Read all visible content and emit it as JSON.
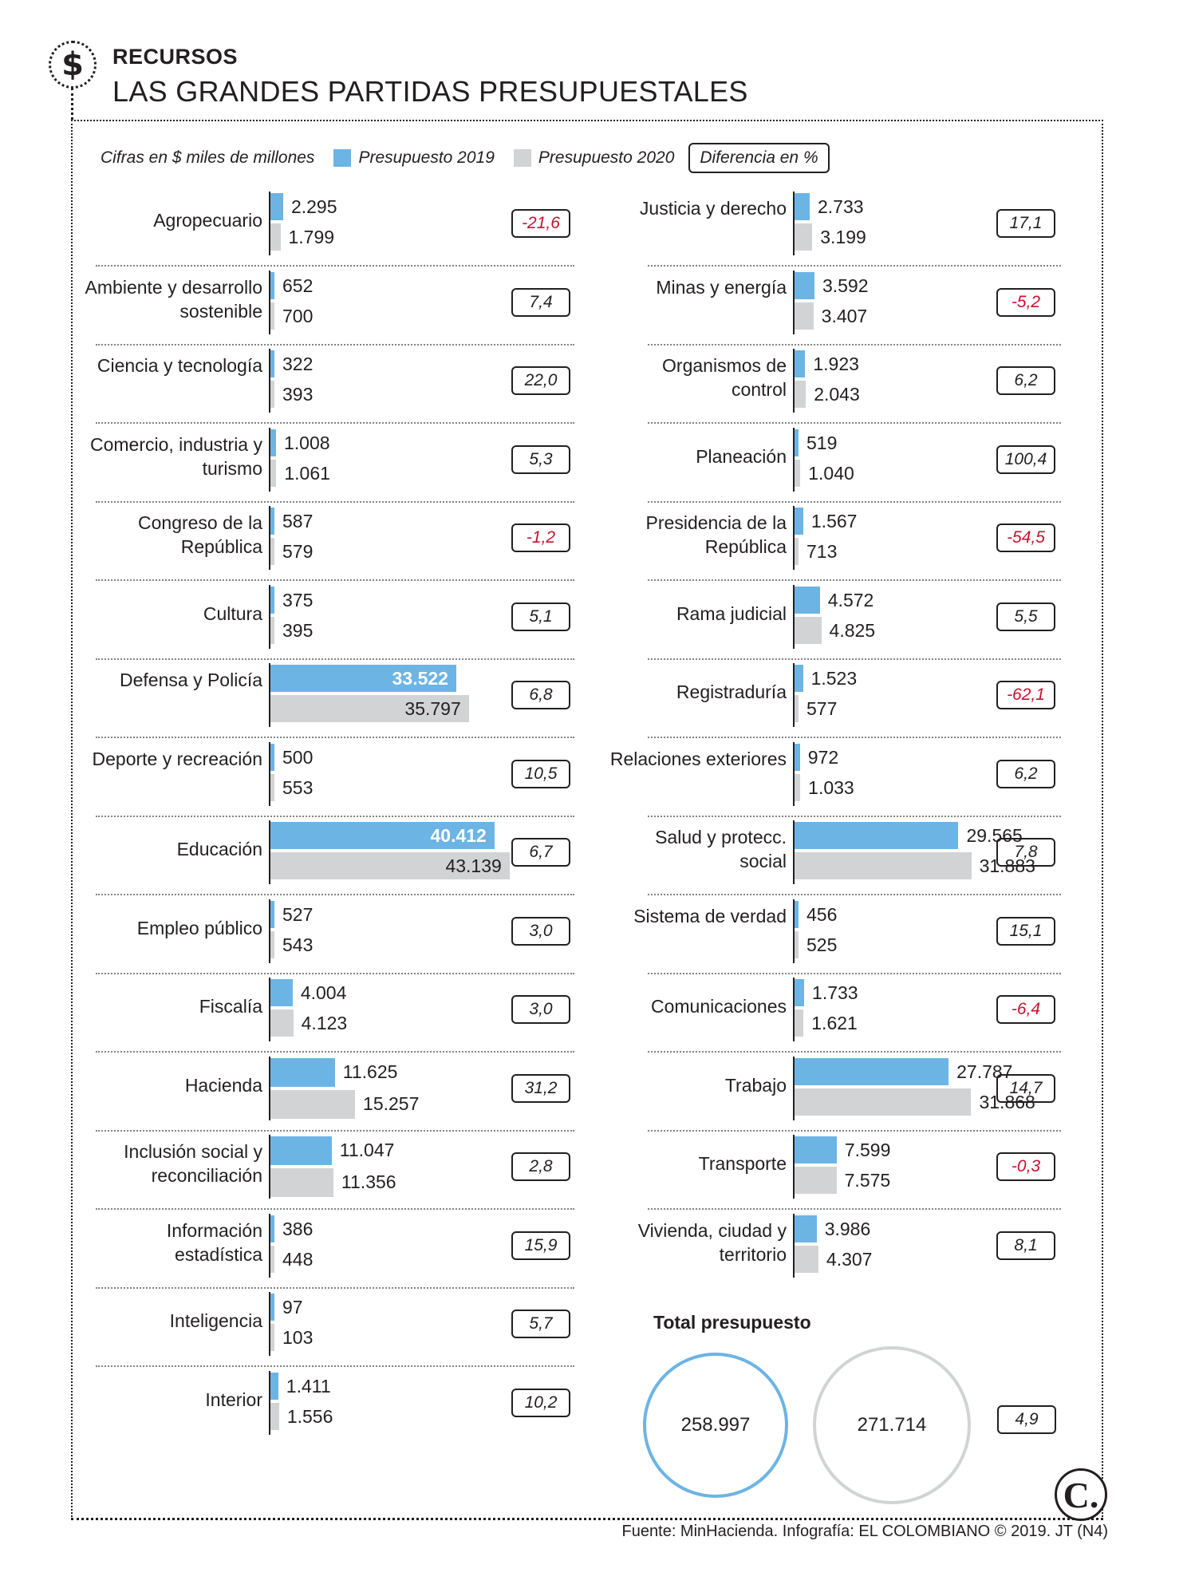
{
  "header": {
    "icon": "dollar-icon",
    "icon_glyph": "$",
    "kicker": "RECURSOS",
    "title": "LAS GRANDES PARTIDAS PRESUPUESTALES"
  },
  "legend": {
    "units": "Cifras en $ miles de millones",
    "series_2019": "Presupuesto 2019",
    "series_2020": "Presupuesto 2020",
    "difference": "Diferencia en %"
  },
  "colors": {
    "series_2019": "#6cb4e4",
    "series_2020": "#d1d3d4",
    "negative": "#c8102e"
  },
  "chart_data": {
    "type": "bar",
    "orientation": "horizontal",
    "series": [
      {
        "name": "Presupuesto 2019"
      },
      {
        "name": "Presupuesto 2020"
      }
    ],
    "rows": [
      {
        "label": "Agropecuario",
        "v2019": 2295,
        "t2019": "2.295",
        "v2020": 1799,
        "t2020": "1.799",
        "diff": "-21,6"
      },
      {
        "label": "Ambiente y desarrollo sostenible",
        "v2019": 652,
        "t2019": "652",
        "v2020": 700,
        "t2020": "700",
        "diff": "7,4"
      },
      {
        "label": "Ciencia y tecnología",
        "v2019": 322,
        "t2019": "322",
        "v2020": 393,
        "t2020": "393",
        "diff": "22,0"
      },
      {
        "label": "Comercio, industria y turismo",
        "v2019": 1008,
        "t2019": "1.008",
        "v2020": 1061,
        "t2020": "1.061",
        "diff": "5,3"
      },
      {
        "label": "Congreso de la República",
        "v2019": 587,
        "t2019": "587",
        "v2020": 579,
        "t2020": "579",
        "diff": "-1,2"
      },
      {
        "label": "Cultura",
        "v2019": 375,
        "t2019": "375",
        "v2020": 395,
        "t2020": "395",
        "diff": "5,1"
      },
      {
        "label": "Defensa y Policía",
        "v2019": 33522,
        "t2019": "33.522",
        "v2020": 35797,
        "t2020": "35.797",
        "diff": "6,8"
      },
      {
        "label": "Deporte y recreación",
        "v2019": 500,
        "t2019": "500",
        "v2020": 553,
        "t2020": "553",
        "diff": "10,5"
      },
      {
        "label": "Educación",
        "v2019": 40412,
        "t2019": "40.412",
        "v2020": 43139,
        "t2020": "43.139",
        "diff": "6,7"
      },
      {
        "label": "Empleo público",
        "v2019": 527,
        "t2019": "527",
        "v2020": 543,
        "t2020": "543",
        "diff": "3,0"
      },
      {
        "label": "Fiscalía",
        "v2019": 4004,
        "t2019": "4.004",
        "v2020": 4123,
        "t2020": "4.123",
        "diff": "3,0"
      },
      {
        "label": "Hacienda",
        "v2019": 11625,
        "t2019": "11.625",
        "v2020": 15257,
        "t2020": "15.257",
        "diff": "31,2"
      },
      {
        "label": "Inclusión social y reconciliación",
        "v2019": 11047,
        "t2019": "11.047",
        "v2020": 11356,
        "t2020": "11.356",
        "diff": "2,8"
      },
      {
        "label": "Información estadística",
        "v2019": 386,
        "t2019": "386",
        "v2020": 448,
        "t2020": "448",
        "diff": "15,9"
      },
      {
        "label": "Inteligencia",
        "v2019": 97,
        "t2019": "97",
        "v2020": 103,
        "t2020": "103",
        "diff": "5,7"
      },
      {
        "label": "Interior",
        "v2019": 1411,
        "t2019": "1.411",
        "v2020": 1556,
        "t2020": "1.556",
        "diff": "10,2"
      },
      {
        "label": "Justicia y derecho",
        "v2019": 2733,
        "t2019": "2.733",
        "v2020": 3199,
        "t2020": "3.199",
        "diff": "17,1"
      },
      {
        "label": "Minas y energía",
        "v2019": 3592,
        "t2019": "3.592",
        "v2020": 3407,
        "t2020": "3.407",
        "diff": "-5,2"
      },
      {
        "label": "Organismos de control",
        "v2019": 1923,
        "t2019": "1.923",
        "v2020": 2043,
        "t2020": "2.043",
        "diff": "6,2"
      },
      {
        "label": "Planeación",
        "v2019": 519,
        "t2019": "519",
        "v2020": 1040,
        "t2020": "1.040",
        "diff": "100,4"
      },
      {
        "label": "Presidencia de la República",
        "v2019": 1567,
        "t2019": "1.567",
        "v2020": 713,
        "t2020": "713",
        "diff": "-54,5"
      },
      {
        "label": "Rama judicial",
        "v2019": 4572,
        "t2019": "4.572",
        "v2020": 4825,
        "t2020": "4.825",
        "diff": "5,5"
      },
      {
        "label": "Registraduría",
        "v2019": 1523,
        "t2019": "1.523",
        "v2020": 577,
        "t2020": "577",
        "diff": "-62,1"
      },
      {
        "label": "Relaciones exteriores",
        "v2019": 972,
        "t2019": "972",
        "v2020": 1033,
        "t2020": "1.033",
        "diff": "6,2"
      },
      {
        "label": "Salud y protecc. social",
        "v2019": 29565,
        "t2019": "29.565",
        "v2020": 31883,
        "t2020": "31.883",
        "diff": "7,8"
      },
      {
        "label": "Sistema de verdad",
        "v2019": 456,
        "t2019": "456",
        "v2020": 525,
        "t2020": "525",
        "diff": "15,1"
      },
      {
        "label": "Comunicaciones",
        "v2019": 1733,
        "t2019": "1.733",
        "v2020": 1621,
        "t2020": "1.621",
        "diff": "-6,4"
      },
      {
        "label": "Trabajo",
        "v2019": 27787,
        "t2019": "27.787",
        "v2020": 31868,
        "t2020": "31.868",
        "diff": "14,7"
      },
      {
        "label": "Transporte",
        "v2019": 7599,
        "t2019": "7.599",
        "v2020": 7575,
        "t2020": "7.575",
        "diff": "-0,3"
      },
      {
        "label": "Vivienda, ciudad y territorio",
        "v2019": 3986,
        "t2019": "3.986",
        "v2020": 4307,
        "t2020": "4.307",
        "diff": "8,1"
      }
    ],
    "total": {
      "title": "Total presupuesto",
      "v2019": "258.997",
      "v2020": "271.714",
      "diff": "4,9"
    }
  },
  "footer": {
    "logo_letter": "C.",
    "source": "Fuente: MinHacienda. Infografía: EL COLOMBIANO © 2019. JT (N4)"
  }
}
